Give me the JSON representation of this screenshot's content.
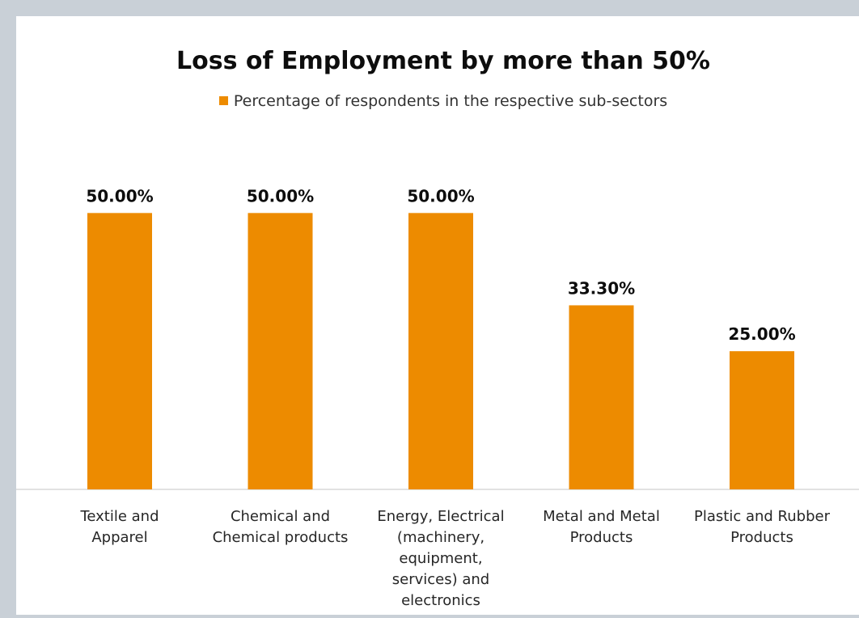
{
  "chart_data": {
    "type": "bar",
    "title": "Loss of Employment by more than 50%",
    "xlabel": "",
    "ylabel": "",
    "categories": [
      "Textile and Apparel",
      "Chemical and Chemical products",
      "Energy, Electrical (machinery, equipment, services) and electronics",
      "Metal and Metal Products",
      "Plastic and Rubber Products"
    ],
    "category_lines": [
      [
        "Textile and",
        "Apparel"
      ],
      [
        "Chemical and",
        "Chemical products"
      ],
      [
        "Energy, Electrical",
        "(machinery,",
        "equipment,",
        "services) and",
        "electronics"
      ],
      [
        "Metal and Metal",
        "Products"
      ],
      [
        "Plastic and Rubber",
        "Products"
      ]
    ],
    "series": [
      {
        "name": "Percentage of respondents in the respective sub-sectors",
        "values": [
          50.0,
          50.0,
          50.0,
          33.3,
          25.0
        ],
        "value_labels": [
          "50.00%",
          "50.00%",
          "50.00%",
          "33.30%",
          "25.00%"
        ],
        "color": "#ed8b00"
      }
    ],
    "ylim": [
      0,
      60
    ],
    "grid": false,
    "legend_position": "top-center",
    "axis_color": "#d9d9d9"
  }
}
